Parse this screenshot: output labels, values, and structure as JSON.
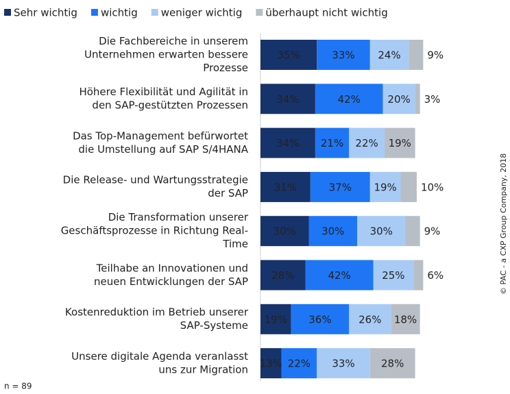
{
  "chart_data": {
    "type": "stacked-bar-horizontal",
    "categories": [
      [
        "Die Fachbereiche in unserem",
        "Unternehmen erwarten bessere",
        "Prozesse"
      ],
      [
        "Höhere Flexibilität und Agilität in",
        "den SAP-gestützten Prozessen"
      ],
      [
        "Das Top-Management befürwortet",
        "die Umstellung auf SAP S/4HANA"
      ],
      [
        "Die Release- und Wartungsstrategie",
        "der SAP"
      ],
      [
        "Die Transformation unserer",
        "Geschäftsprozesse in Richtung Real-",
        "Time"
      ],
      [
        "Teilhabe an Innovationen und",
        "neuen Entwicklungen der SAP"
      ],
      [
        "Kostenreduktion im Betrieb unserer",
        "SAP-Systeme"
      ],
      [
        "Unsere digitale Agenda veranlasst",
        "uns zur Migration"
      ]
    ],
    "series": [
      {
        "name": "Sehr wichtig",
        "color": "#17336b",
        "values": [
          35,
          34,
          34,
          31,
          30,
          28,
          19,
          13
        ],
        "value_labels": [
          "35%",
          "34%",
          "34%",
          "31%",
          "30%",
          "28%",
          "19%",
          "13%"
        ]
      },
      {
        "name": "wichtig",
        "color": "#1e76f5",
        "values": [
          33,
          42,
          21,
          37,
          30,
          42,
          36,
          22
        ],
        "value_labels": [
          "33%",
          "42%",
          "21%",
          "37%",
          "30%",
          "42%",
          "36%",
          "22%"
        ]
      },
      {
        "name": "weniger wichtig",
        "color": "#a8cbf6",
        "values": [
          24,
          20,
          22,
          19,
          30,
          25,
          26,
          33
        ],
        "value_labels": [
          "24%",
          "20%",
          "22%",
          "19%",
          "30%",
          "25%",
          "26%",
          "33%"
        ]
      },
      {
        "name": "überhaupt nicht wichtig",
        "color": "#b8bec6",
        "values": [
          9,
          3,
          19,
          10,
          9,
          6,
          18,
          28
        ],
        "value_labels": [
          "9%",
          "3%",
          "19%",
          "10%",
          "9%",
          "6%",
          "18%",
          "28%"
        ]
      }
    ],
    "note": "n = 89",
    "copyright": "© PAC - a CXP Group Company, 2018"
  }
}
